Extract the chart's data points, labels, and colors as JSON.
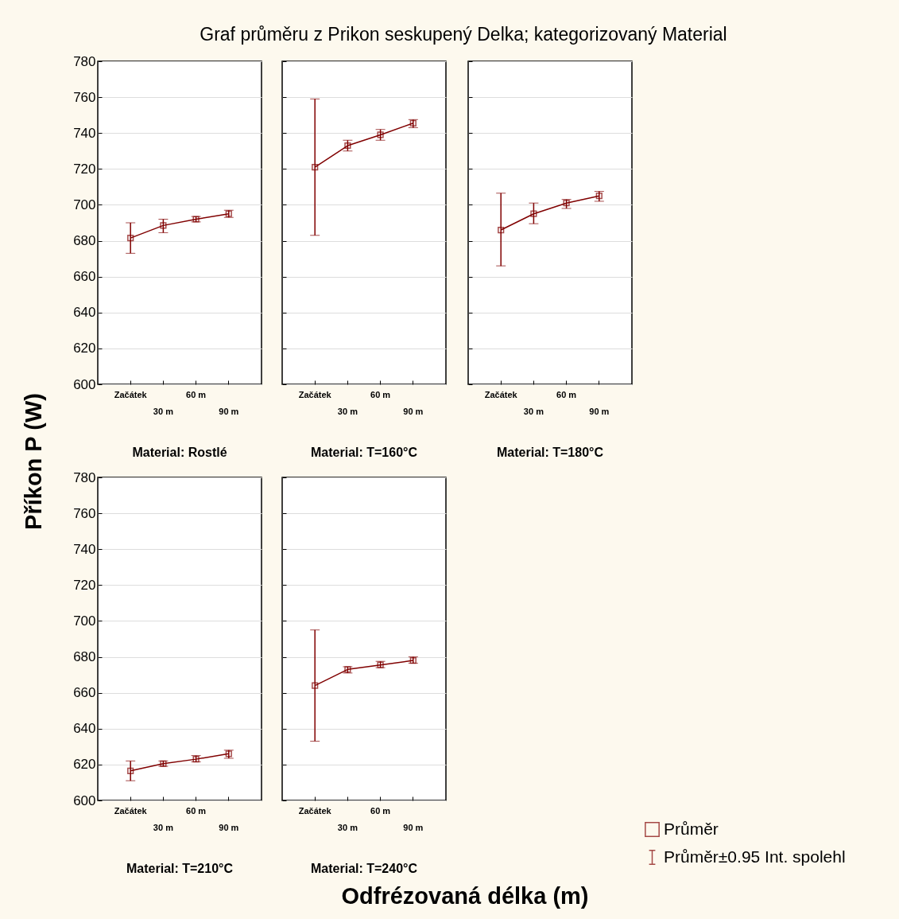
{
  "chart_data": [
    {
      "type": "line",
      "title": "Material: Rostlé",
      "categories": [
        "Začátek",
        "30 m",
        "60 m",
        "90 m"
      ],
      "marker": "square",
      "grid": "y",
      "ylim": [
        600,
        780
      ],
      "yticks": [
        600,
        620,
        640,
        660,
        680,
        700,
        720,
        740,
        760,
        780
      ],
      "series": [
        {
          "color": "#800000",
          "values": [
            681.5,
            688.5,
            692,
            695
          ],
          "errors": [
            [
              673,
              690
            ],
            [
              684.5,
              692
            ],
            [
              690.5,
              693.5
            ],
            [
              693,
              697
            ]
          ]
        }
      ]
    },
    {
      "type": "line",
      "title": "Material: T=160°C",
      "categories": [
        "Začátek",
        "30 m",
        "60 m",
        "90 m"
      ],
      "marker": "square",
      "grid": "y",
      "ylim": [
        600,
        780
      ],
      "yticks": [
        600,
        620,
        640,
        660,
        680,
        700,
        720,
        740,
        760,
        780
      ],
      "tick_labels": "x",
      "series": [
        {
          "color": "#800000",
          "values": [
            721,
            733,
            739,
            745.5
          ],
          "errors": [
            [
              683,
              759
            ],
            [
              730,
              736
            ],
            [
              736,
              742
            ],
            [
              743,
              747.5
            ]
          ]
        }
      ]
    },
    {
      "type": "line",
      "title": "Material: T=180°C",
      "categories": [
        "Začátek",
        "30 m",
        "60 m",
        "90 m"
      ],
      "marker": "square",
      "grid": "y",
      "ylim": [
        600,
        780
      ],
      "yticks": [
        600,
        620,
        640,
        660,
        680,
        700,
        720,
        740,
        760,
        780
      ],
      "tick_labels": "x",
      "series": [
        {
          "color": "#800000",
          "values": [
            686,
            695,
            701,
            705
          ],
          "errors": [
            [
              666,
              706.5
            ],
            [
              689.5,
              701
            ],
            [
              698,
              703
            ],
            [
              702,
              707.5
            ]
          ]
        }
      ]
    },
    {
      "type": "line",
      "title": "Material: T=210°C",
      "categories": [
        "Začátek",
        "30 m",
        "60 m",
        "90 m"
      ],
      "marker": "square",
      "grid": "y",
      "ylim": [
        600,
        780
      ],
      "yticks": [
        600,
        620,
        640,
        660,
        680,
        700,
        720,
        740,
        760,
        780
      ],
      "series": [
        {
          "color": "#800000",
          "values": [
            616.5,
            620.5,
            623,
            626
          ],
          "errors": [
            [
              611,
              622
            ],
            [
              619,
              622
            ],
            [
              621.5,
              625
            ],
            [
              623.5,
              628
            ]
          ]
        }
      ]
    },
    {
      "type": "line",
      "title": "Material: T=240°C",
      "categories": [
        "Začátek",
        "30 m",
        "60 m",
        "90 m"
      ],
      "marker": "square",
      "grid": "y",
      "ylim": [
        600,
        780
      ],
      "yticks": [
        600,
        620,
        640,
        660,
        680,
        700,
        720,
        740,
        760,
        780
      ],
      "tick_labels": "x",
      "legend": "bottom right",
      "annotations": [
        "Průměr±0.95 Int. spolehl"
      ],
      "series": [
        {
          "name": "Průměr",
          "color": "#800000",
          "values": [
            664,
            673,
            675.5,
            678
          ],
          "errors": [
            [
              633,
              695
            ],
            [
              671,
              674.5
            ],
            [
              674,
              677.5
            ],
            [
              676.5,
              680
            ]
          ]
        }
      ]
    },
    {
      "type": "other",
      "title": "Graf průměru z Prikon seskupený Delka; kategorizovaný Material",
      "xlabel": "Odfrézovaná délka (m)",
      "ylabel": "Příkon P (W)"
    }
  ]
}
